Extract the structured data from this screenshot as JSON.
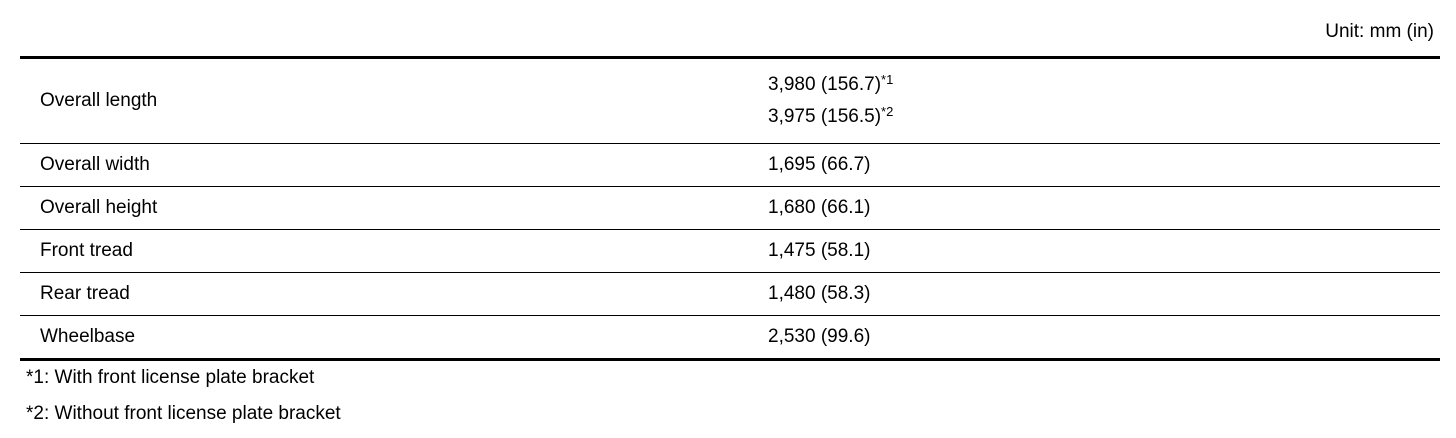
{
  "unit_label": "Unit: mm (in)",
  "rows": [
    {
      "label": "Overall length",
      "values": [
        {
          "text": "3,980 (156.7)",
          "note": "*1"
        },
        {
          "text": "3,975 (156.5)",
          "note": "*2"
        }
      ]
    },
    {
      "label": "Overall width",
      "value": "1,695 (66.7)"
    },
    {
      "label": "Overall height",
      "value": "1,680 (66.1)"
    },
    {
      "label": "Front tread",
      "value": "1,475 (58.1)"
    },
    {
      "label": "Rear tread",
      "value": "1,480 (58.3)"
    },
    {
      "label": "Wheelbase",
      "value": "2,530 (99.6)"
    }
  ],
  "footnotes": [
    "*1: With front license plate bracket",
    "*2: Without front license plate bracket"
  ]
}
